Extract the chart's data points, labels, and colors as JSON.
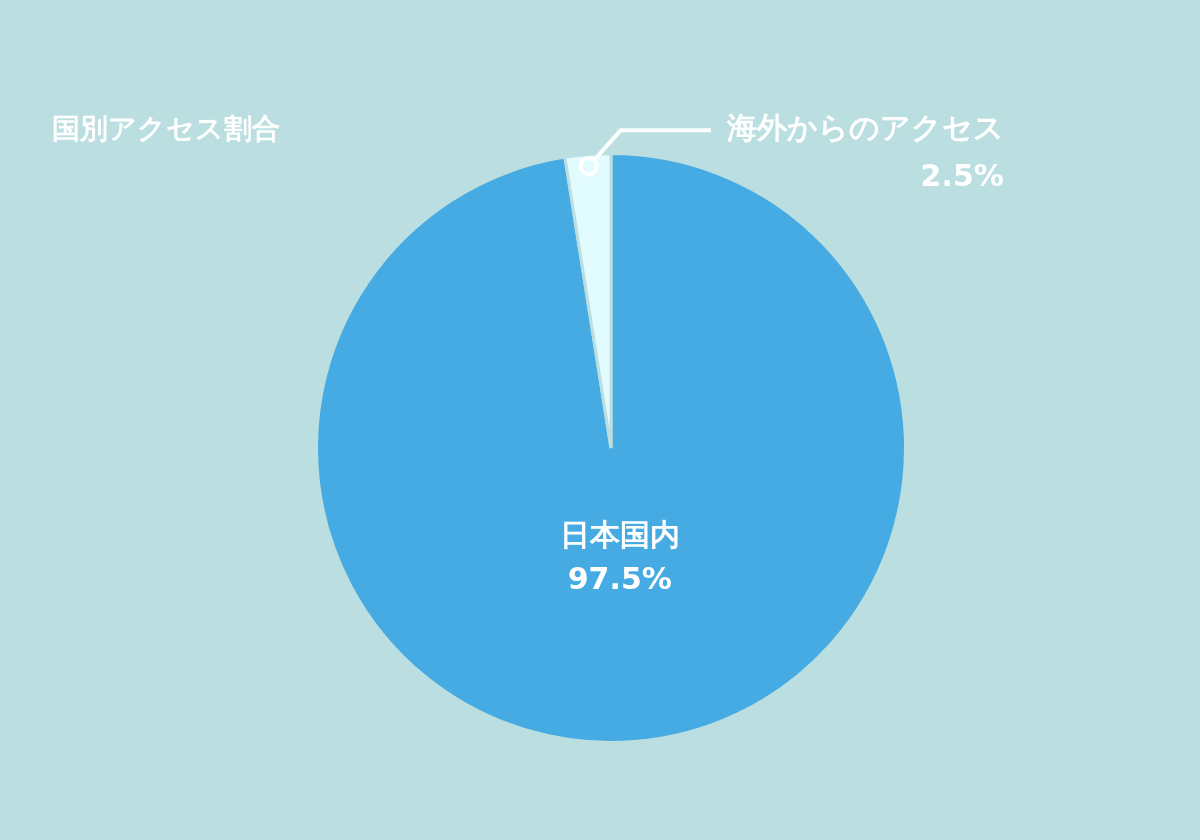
{
  "chart_data": {
    "type": "pie",
    "title": "国別アクセス割合",
    "categories": [
      "日本国内",
      "海外からのアクセス"
    ],
    "values": [
      97.5,
      2.5
    ],
    "colors": [
      "#45abe2",
      "#e2fbff"
    ],
    "value_labels": [
      "97.5%",
      "2.5%"
    ],
    "legend": false
  }
}
